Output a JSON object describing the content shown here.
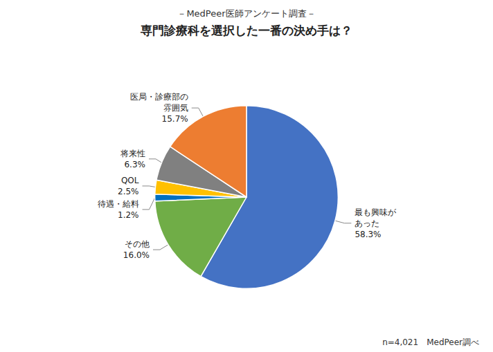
{
  "chart_data": {
    "type": "pie",
    "subtitle": "－MedPeer医師アンケート調査－",
    "title": "専門診療科を選択した一番の決め手は？",
    "annotations": [
      "n=4,021　MedPeer調べ"
    ],
    "categories": [
      "最も興味が\nあった",
      "その他",
      "待遇・給料",
      "QOL",
      "将来性",
      "医局・診療部の\n雰囲気"
    ],
    "values": [
      58.3,
      16.0,
      1.2,
      2.5,
      6.3,
      15.7
    ],
    "value_labels": [
      "58.3%",
      "16.0%",
      "1.2%",
      "2.5%",
      "6.3%",
      "15.7%"
    ],
    "colors": [
      "#4472C4",
      "#70AD47",
      "#0070C0",
      "#FFC000",
      "#808080",
      "#ED7D31"
    ],
    "data_labels": true
  }
}
